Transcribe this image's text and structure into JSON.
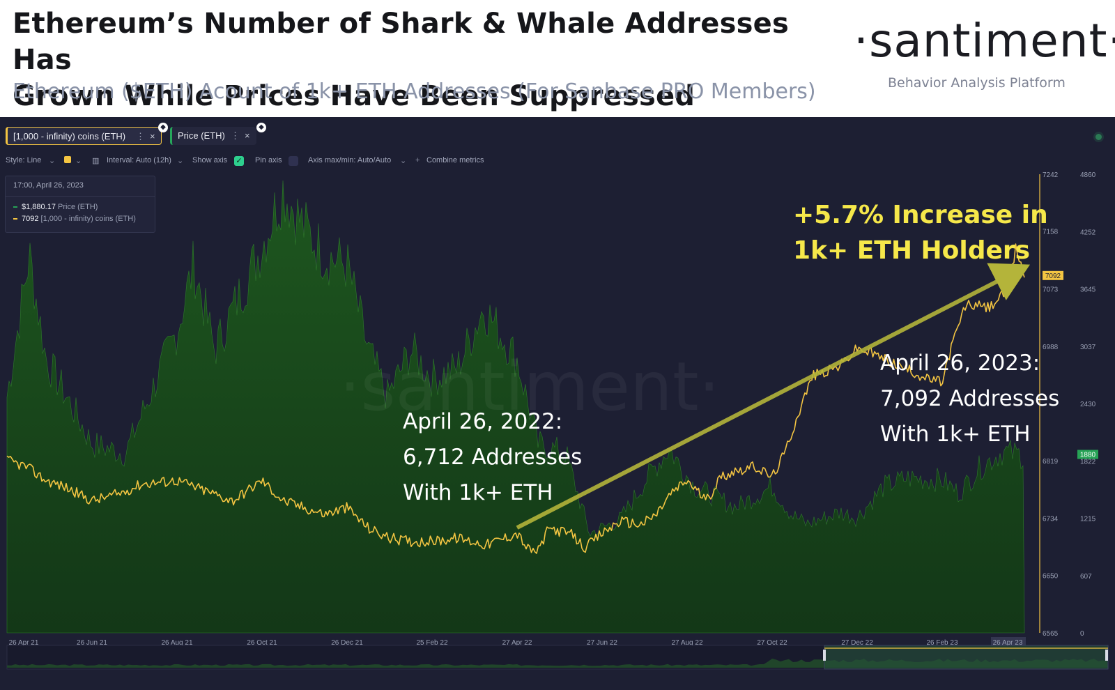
{
  "header": {
    "title_line1": "Ethereum’s Number of Shark & Whale Addresses Has",
    "title_line2": "Grown While Prices Have Been Suppressed",
    "subtitle": "Ethereum ($ETH) Acount of 1k+ ETH Addresses (For Sanbase PRO Members)",
    "brand": "·santiment·",
    "tagline": "Behavior Analysis Platform"
  },
  "tabs": [
    {
      "label": "[1,000 - infinity) coins (ETH)",
      "dots": "⋮",
      "close": "×"
    },
    {
      "label": "Price (ETH)",
      "dots": "⋮",
      "close": "×"
    }
  ],
  "toolbar": {
    "style": "Style: Line",
    "interval": "Interval: Auto (12h)",
    "show_axis": "Show axis",
    "pin_axis": "Pin axis",
    "axis_maxmin": "Axis max/min: Auto/Auto",
    "combine": "Combine metrics"
  },
  "tooltip": {
    "date": "17:00, April 26, 2023",
    "price_value": "$1,880.17",
    "price_label": "Price (ETH)",
    "holders_value": "7092",
    "holders_label": "[1,000 - infinity) coins (ETH)"
  },
  "annotations": {
    "left": [
      "April 26, 2022:",
      "6,712 Addresses",
      "With 1k+ ETH"
    ],
    "right": [
      "April 26, 2023:",
      "7,092 Addresses",
      "With 1k+ ETH"
    ],
    "increase": [
      "+5.7% Increase in",
      "1k+ ETH Holders"
    ]
  },
  "colors": {
    "panel_bg": "#1d1f33",
    "holders_line": "#f4c542",
    "price_area": "#1e5a1e",
    "arrow": "#b4b43a",
    "badge_green": "#27a356"
  },
  "chart_data": {
    "type": "line",
    "title": "Ethereum ($ETH) Acount of 1k+ ETH Addresses (For Sanbase PRO Members)",
    "x_tick_labels": [
      "26 Apr 21",
      "26 Jun 21",
      "26 Aug 21",
      "26 Oct 21",
      "26 Dec 21",
      "25 Feb 22",
      "27 Apr 22",
      "27 Jun 22",
      "27 Aug 22",
      "27 Oct 22",
      "27 Dec 22",
      "26 Feb 23",
      "26 Apr 23"
    ],
    "y_left_ticks": [
      7242,
      7158,
      7073,
      6988,
      6819,
      6734,
      6650,
      6565
    ],
    "y_left_range": [
      6565,
      7242
    ],
    "y_right_ticks": [
      4860,
      4252,
      3645,
      3037,
      2430,
      1822,
      1215,
      607,
      0
    ],
    "y_right_range": [
      0,
      4860
    ],
    "current_badges": {
      "holders": "7092",
      "price": "1880"
    },
    "series": [
      {
        "name": "[1,000 - infinity) coins (ETH)",
        "axis": "left",
        "x": [
          "2021-04-26",
          "2021-05-10",
          "2021-05-24",
          "2021-06-07",
          "2021-06-26",
          "2021-07-15",
          "2021-08-01",
          "2021-08-26",
          "2021-09-15",
          "2021-10-05",
          "2021-10-26",
          "2021-11-10",
          "2021-11-25",
          "2021-12-10",
          "2021-12-26",
          "2022-01-10",
          "2022-01-25",
          "2022-02-10",
          "2022-02-25",
          "2022-03-15",
          "2022-04-05",
          "2022-04-27",
          "2022-05-05",
          "2022-05-12",
          "2022-05-20",
          "2022-06-05",
          "2022-06-15",
          "2022-06-27",
          "2022-07-10",
          "2022-07-25",
          "2022-08-05",
          "2022-08-15",
          "2022-08-27",
          "2022-09-10",
          "2022-09-20",
          "2022-10-01",
          "2022-10-15",
          "2022-10-27",
          "2022-11-05",
          "2022-11-15",
          "2022-11-25",
          "2022-12-05",
          "2022-12-15",
          "2022-12-27",
          "2023-01-10",
          "2023-01-25",
          "2023-02-05",
          "2023-02-15",
          "2023-02-26",
          "2023-03-05",
          "2023-03-15",
          "2023-04-01",
          "2023-04-15",
          "2023-04-20",
          "2023-04-26"
        ],
        "values": [
          6820,
          6810,
          6790,
          6780,
          6760,
          6770,
          6785,
          6790,
          6775,
          6760,
          6790,
          6760,
          6750,
          6740,
          6750,
          6720,
          6705,
          6700,
          6700,
          6705,
          6695,
          6712,
          6688,
          6685,
          6720,
          6710,
          6690,
          6712,
          6730,
          6725,
          6740,
          6770,
          6790,
          6760,
          6795,
          6805,
          6810,
          6795,
          6830,
          6890,
          6945,
          6950,
          6960,
          6985,
          6975,
          6960,
          6950,
          6940,
          6935,
          6990,
          7050,
          7045,
          7075,
          7135,
          7092
        ]
      },
      {
        "name": "Price (ETH)",
        "axis": "right",
        "x": [
          "2021-04-26",
          "2021-05-12",
          "2021-05-24",
          "2021-06-26",
          "2021-07-20",
          "2021-08-26",
          "2021-09-07",
          "2021-09-22",
          "2021-10-26",
          "2021-11-10",
          "2021-11-25",
          "2021-12-10",
          "2021-12-26",
          "2022-01-10",
          "2022-01-24",
          "2022-02-10",
          "2022-02-25",
          "2022-03-15",
          "2022-04-03",
          "2022-04-27",
          "2022-05-12",
          "2022-06-01",
          "2022-06-18",
          "2022-07-10",
          "2022-08-01",
          "2022-08-14",
          "2022-09-01",
          "2022-09-15",
          "2022-10-01",
          "2022-10-27",
          "2022-11-10",
          "2022-11-21",
          "2022-12-15",
          "2022-12-27",
          "2023-01-15",
          "2023-02-01",
          "2023-02-26",
          "2023-03-10",
          "2023-03-25",
          "2023-04-10",
          "2023-04-26"
        ],
        "values": [
          2500,
          4000,
          2900,
          2000,
          1900,
          3200,
          3900,
          3000,
          4100,
          4700,
          4300,
          4000,
          3900,
          3000,
          2500,
          3000,
          2700,
          2800,
          3450,
          2900,
          2000,
          1900,
          1050,
          1200,
          1700,
          1950,
          1550,
          1450,
          1330,
          1550,
          1250,
          1150,
          1280,
          1220,
          1550,
          1640,
          1620,
          1480,
          1750,
          1920,
          1880
        ]
      }
    ]
  }
}
